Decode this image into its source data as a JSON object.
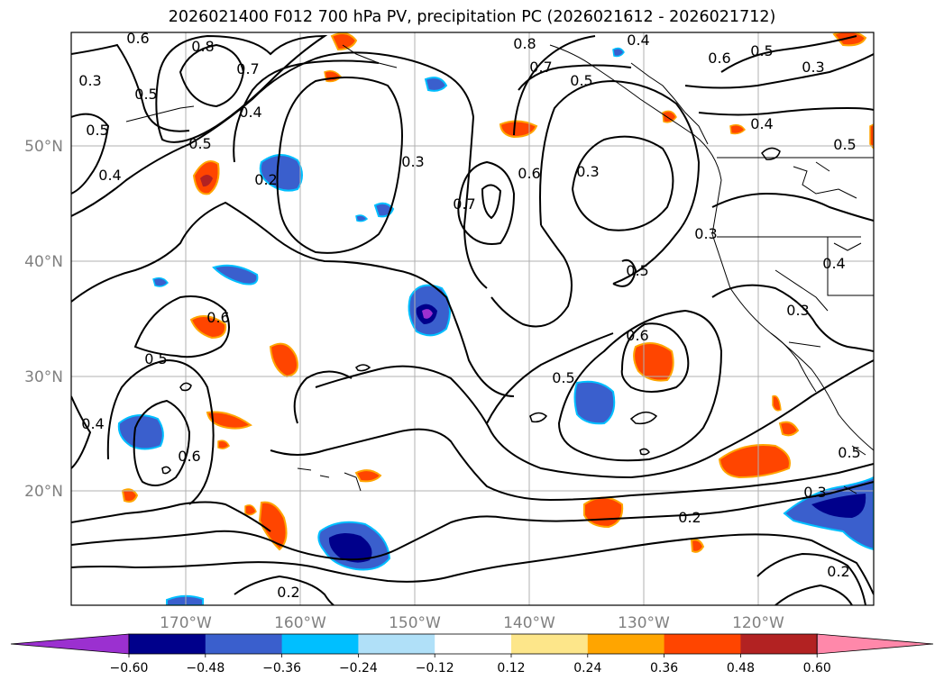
{
  "title": "2026021400 F012 700 hPa PV, precipitation PC (2026021612 - 2026021712)",
  "map": {
    "lat_labels": [
      "50°N",
      "40°N",
      "30°N",
      "20°N"
    ],
    "lon_labels": [
      "170°W",
      "160°W",
      "150°W",
      "140°W",
      "130°W",
      "120°W"
    ],
    "contour_labels": [
      {
        "text": "0.8"
      },
      {
        "text": "0.7"
      },
      {
        "text": "0.6"
      },
      {
        "text": "0.5"
      },
      {
        "text": "0.5"
      },
      {
        "text": "0.4"
      },
      {
        "text": "0.3"
      },
      {
        "text": "0.4"
      },
      {
        "text": "0.5"
      },
      {
        "text": "0.2"
      },
      {
        "text": "0.3"
      },
      {
        "text": "0.7"
      },
      {
        "text": "0.6"
      },
      {
        "text": "0.3"
      },
      {
        "text": "0.8"
      },
      {
        "text": "0.7"
      },
      {
        "text": "0.5"
      },
      {
        "text": "0.4"
      },
      {
        "text": "0.6"
      },
      {
        "text": "0.5"
      },
      {
        "text": "0.3"
      },
      {
        "text": "0.4"
      },
      {
        "text": "0.5"
      },
      {
        "text": "0.3"
      },
      {
        "text": "0.5"
      },
      {
        "text": "0.4"
      },
      {
        "text": "0.3"
      },
      {
        "text": "0.6"
      },
      {
        "text": "0.5"
      },
      {
        "text": "0.6"
      },
      {
        "text": "0.5"
      },
      {
        "text": "0.4"
      },
      {
        "text": "0.6"
      },
      {
        "text": "0.5"
      },
      {
        "text": "0.3"
      },
      {
        "text": "0.2"
      },
      {
        "text": "0.2"
      },
      {
        "text": "0.2"
      }
    ]
  },
  "colorbar": {
    "tick_labels": [
      "−0.60",
      "−0.48",
      "−0.36",
      "−0.24",
      "−0.12",
      "0.12",
      "0.24",
      "0.36",
      "0.48",
      "0.60"
    ],
    "colors": [
      "#9b30d0",
      "#00008b",
      "#3a5fcd",
      "#00bfff",
      "#b0e0f8",
      "#ffffff",
      "#fde68a",
      "#ffa500",
      "#ff4500",
      "#b22222",
      "#ff88aa"
    ]
  }
}
